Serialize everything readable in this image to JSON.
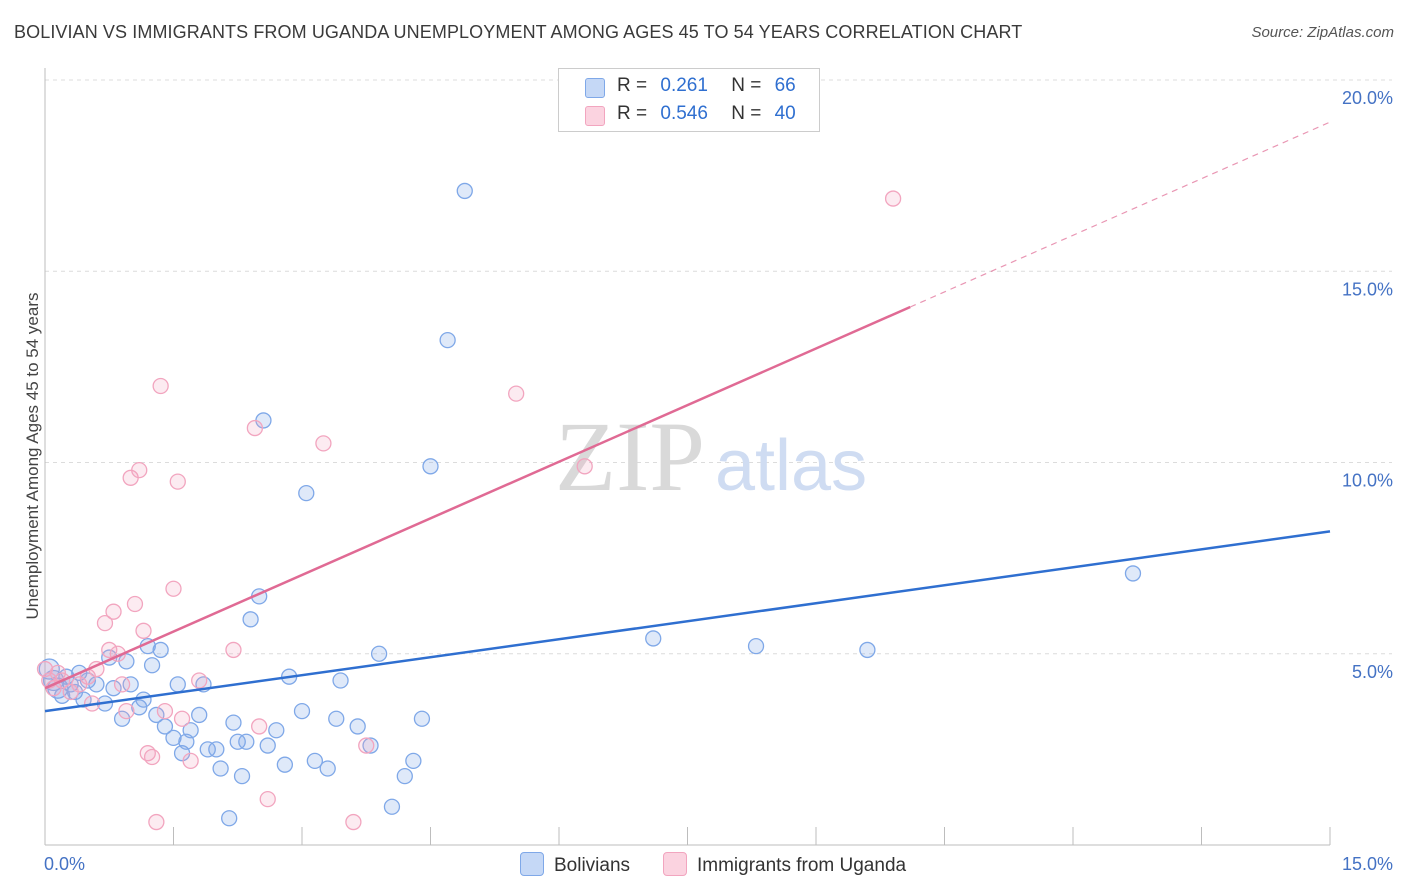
{
  "header": {
    "title": "BOLIVIAN VS IMMIGRANTS FROM UGANDA UNEMPLOYMENT AMONG AGES 45 TO 54 YEARS CORRELATION CHART",
    "source": "Source: ZipAtlas.com"
  },
  "watermark": {
    "zip": "ZIP",
    "atlas": "atlas"
  },
  "legend": {
    "rows": [
      {
        "r_label": "R =",
        "r_value": "0.261",
        "n_label": "N =",
        "n_value": "66"
      },
      {
        "r_label": "R =",
        "r_value": "0.546",
        "n_label": "N =",
        "n_value": "40"
      }
    ]
  },
  "chart_data": {
    "type": "scatter",
    "title": "BOLIVIAN VS IMMIGRANTS FROM UGANDA UNEMPLOYMENT AMONG AGES 45 TO 54 YEARS CORRELATION CHART",
    "xlabel": "",
    "ylabel": "Unemployment Among Ages 45 to 54 years",
    "xlim": [
      0,
      15
    ],
    "ylim": [
      0,
      20
    ],
    "x_ticks": [
      {
        "value": 0,
        "label": "0.0%"
      },
      {
        "value": 15,
        "label": "15.0%"
      }
    ],
    "y_ticks": [
      {
        "value": 5,
        "label": "5.0%"
      },
      {
        "value": 10,
        "label": "10.0%"
      },
      {
        "value": 15,
        "label": "15.0%"
      },
      {
        "value": 20,
        "label": "20.0%"
      }
    ],
    "grid": true,
    "legend_position": "bottom",
    "series": [
      {
        "name": "Bolivians",
        "color": "#7fa8e8",
        "line_color": "#2f6fd0",
        "trend": {
          "x": [
            0,
            15
          ],
          "y": [
            3.5,
            8.2
          ],
          "dashed_from": null
        },
        "points": [
          [
            0.05,
            4.6
          ],
          [
            0.1,
            4.3
          ],
          [
            0.15,
            4.1
          ],
          [
            0.2,
            3.9
          ],
          [
            0.25,
            4.4
          ],
          [
            0.3,
            4.2
          ],
          [
            0.35,
            4.0
          ],
          [
            0.4,
            4.5
          ],
          [
            0.45,
            3.8
          ],
          [
            0.5,
            4.3
          ],
          [
            0.6,
            4.2
          ],
          [
            0.7,
            3.7
          ],
          [
            0.75,
            4.9
          ],
          [
            0.8,
            4.1
          ],
          [
            0.9,
            3.3
          ],
          [
            0.95,
            4.8
          ],
          [
            1.0,
            4.2
          ],
          [
            1.1,
            3.6
          ],
          [
            1.15,
            3.8
          ],
          [
            1.2,
            5.2
          ],
          [
            1.25,
            4.7
          ],
          [
            1.3,
            3.4
          ],
          [
            1.35,
            5.1
          ],
          [
            1.4,
            3.1
          ],
          [
            1.5,
            2.8
          ],
          [
            1.55,
            4.2
          ],
          [
            1.6,
            2.4
          ],
          [
            1.65,
            2.7
          ],
          [
            1.7,
            3.0
          ],
          [
            1.8,
            3.4
          ],
          [
            1.85,
            4.2
          ],
          [
            1.9,
            2.5
          ],
          [
            2.0,
            2.5
          ],
          [
            2.05,
            2.0
          ],
          [
            2.15,
            0.7
          ],
          [
            2.2,
            3.2
          ],
          [
            2.25,
            2.7
          ],
          [
            2.3,
            1.8
          ],
          [
            2.35,
            2.7
          ],
          [
            2.4,
            5.9
          ],
          [
            2.5,
            6.5
          ],
          [
            2.55,
            11.1
          ],
          [
            2.6,
            2.6
          ],
          [
            2.7,
            3.0
          ],
          [
            2.8,
            2.1
          ],
          [
            2.85,
            4.4
          ],
          [
            3.0,
            3.5
          ],
          [
            3.05,
            9.2
          ],
          [
            3.15,
            2.2
          ],
          [
            3.3,
            2.0
          ],
          [
            3.4,
            3.3
          ],
          [
            3.45,
            4.3
          ],
          [
            3.65,
            3.1
          ],
          [
            3.8,
            2.6
          ],
          [
            3.9,
            5.0
          ],
          [
            4.05,
            1.0
          ],
          [
            4.2,
            1.8
          ],
          [
            4.3,
            2.2
          ],
          [
            4.4,
            3.3
          ],
          [
            4.5,
            9.9
          ],
          [
            4.7,
            13.2
          ],
          [
            4.9,
            17.1
          ],
          [
            7.1,
            5.4
          ],
          [
            8.3,
            5.2
          ],
          [
            9.6,
            5.1
          ],
          [
            12.7,
            7.1
          ]
        ]
      },
      {
        "name": "Immigrants from Uganda",
        "color": "#f2a5bf",
        "line_color": "#e06a94",
        "trend": {
          "x": [
            0,
            15
          ],
          "y": [
            4.1,
            18.9
          ],
          "dashed_from": 10.1
        },
        "points": [
          [
            0.05,
            4.3
          ],
          [
            0.1,
            4.1
          ],
          [
            0.2,
            4.3
          ],
          [
            0.3,
            4.0
          ],
          [
            0.4,
            4.2
          ],
          [
            0.5,
            4.4
          ],
          [
            0.55,
            3.7
          ],
          [
            0.6,
            4.6
          ],
          [
            0.7,
            5.8
          ],
          [
            0.75,
            5.1
          ],
          [
            0.8,
            6.1
          ],
          [
            0.85,
            5.0
          ],
          [
            0.9,
            4.2
          ],
          [
            0.95,
            3.5
          ],
          [
            1.0,
            9.6
          ],
          [
            1.05,
            6.3
          ],
          [
            1.1,
            9.8
          ],
          [
            1.15,
            5.6
          ],
          [
            1.2,
            2.4
          ],
          [
            1.25,
            2.3
          ],
          [
            1.3,
            0.6
          ],
          [
            1.35,
            12.0
          ],
          [
            1.4,
            3.5
          ],
          [
            1.5,
            6.7
          ],
          [
            1.55,
            9.5
          ],
          [
            1.6,
            3.3
          ],
          [
            1.7,
            2.2
          ],
          [
            1.8,
            4.3
          ],
          [
            2.2,
            5.1
          ],
          [
            2.45,
            10.9
          ],
          [
            2.5,
            3.1
          ],
          [
            2.6,
            1.2
          ],
          [
            3.25,
            10.5
          ],
          [
            3.6,
            0.6
          ],
          [
            3.75,
            2.6
          ],
          [
            5.5,
            11.8
          ],
          [
            6.3,
            9.9
          ],
          [
            9.9,
            16.9
          ],
          [
            0.0,
            4.6
          ],
          [
            0.15,
            4.5
          ]
        ]
      }
    ]
  },
  "bottom_legend": {
    "items": [
      {
        "label": "Bolivians",
        "color": "#c5d8f6",
        "border": "#7fa8e8"
      },
      {
        "label": "Immigrants from Uganda",
        "color": "#fbd3e0",
        "border": "#f2a5bf"
      }
    ]
  }
}
